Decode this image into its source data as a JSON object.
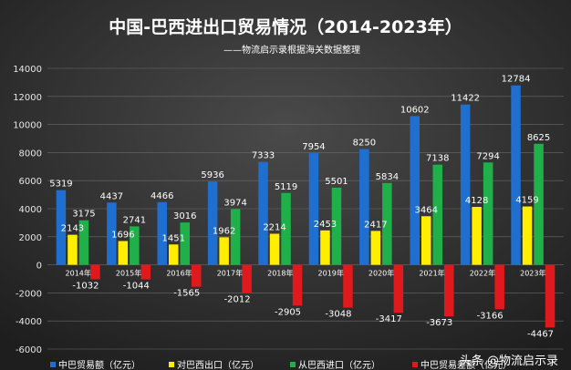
{
  "chart_data": {
    "type": "bar",
    "title": "中国-巴西进出口贸易情况（2014-2023年）",
    "subtitle": "——物流启示录根据海关数据整理",
    "categories": [
      "2014年",
      "2015年",
      "2016年",
      "2017年",
      "2018年",
      "2019年",
      "2020年",
      "2021年",
      "2022年",
      "2023年"
    ],
    "series": [
      {
        "name": "中巴贸易额（亿元）",
        "color": "#1f6fd1",
        "values": [
          5319,
          4437,
          4466,
          5936,
          7333,
          7954,
          8250,
          10602,
          11422,
          12784
        ]
      },
      {
        "name": "对巴西出口（亿元）",
        "color": "#ffee00",
        "values": [
          2143,
          1696,
          1451,
          1962,
          2214,
          2453,
          2417,
          3464,
          4128,
          4159
        ]
      },
      {
        "name": "从巴西进口（亿元）",
        "color": "#1fb04a",
        "values": [
          3175,
          2741,
          3016,
          3974,
          5119,
          5501,
          5834,
          7138,
          7294,
          8625
        ]
      },
      {
        "name": "中巴贸易差额（亿元）",
        "color": "#e0191c",
        "values": [
          -1032,
          -1044,
          -1565,
          -2012,
          -2905,
          -3048,
          -3417,
          -3673,
          -3166,
          -4467
        ]
      }
    ],
    "ylim": [
      -6000,
      14000
    ],
    "yticks": [
      -6000,
      -4000,
      -2000,
      0,
      2000,
      4000,
      6000,
      8000,
      10000,
      12000,
      14000
    ],
    "grid": true,
    "legend": "bottom"
  },
  "watermark": "头条 @物流启示录"
}
